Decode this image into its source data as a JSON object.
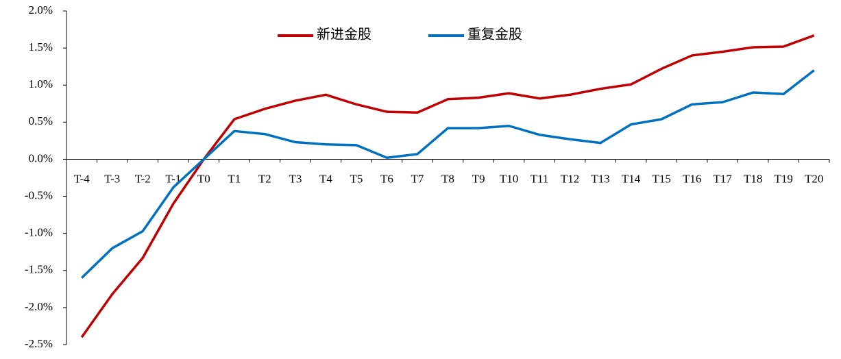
{
  "chart_data": {
    "type": "line",
    "categories": [
      "T-4",
      "T-3",
      "T-2",
      "T-1",
      "T0",
      "T1",
      "T2",
      "T3",
      "T4",
      "T5",
      "T6",
      "T7",
      "T8",
      "T9",
      "T10",
      "T11",
      "T12",
      "T13",
      "T14",
      "T15",
      "T16",
      "T17",
      "T18",
      "T19",
      "T20"
    ],
    "series": [
      {
        "name": "新进金股",
        "color": "#c00000",
        "values": [
          -2.4,
          -1.82,
          -1.33,
          -0.6,
          0.0,
          0.54,
          0.68,
          0.79,
          0.87,
          0.74,
          0.64,
          0.63,
          0.81,
          0.83,
          0.89,
          0.82,
          0.87,
          0.95,
          1.01,
          1.22,
          1.4,
          1.45,
          1.51,
          1.52,
          1.67
        ]
      },
      {
        "name": "重复金股",
        "color": "#0070c0",
        "values": [
          -1.6,
          -1.2,
          -0.97,
          -0.38,
          0.0,
          0.38,
          0.34,
          0.23,
          0.2,
          0.19,
          0.02,
          0.07,
          0.42,
          0.42,
          0.45,
          0.33,
          0.27,
          0.22,
          0.47,
          0.54,
          0.74,
          0.77,
          0.9,
          0.88,
          1.2
        ]
      }
    ],
    "ylim": [
      -2.5,
      2.0
    ],
    "yticks": [
      {
        "value": 2.0,
        "label": "2.0%"
      },
      {
        "value": 1.5,
        "label": "1.5%"
      },
      {
        "value": 1.0,
        "label": "1.0%"
      },
      {
        "value": 0.5,
        "label": "0.5%"
      },
      {
        "value": 0.0,
        "label": "0.0%"
      },
      {
        "value": -0.5,
        "label": "-0.5%"
      },
      {
        "value": -1.0,
        "label": "-1.0%"
      },
      {
        "value": -1.5,
        "label": "-1.5%"
      },
      {
        "value": -2.0,
        "label": "-2.0%"
      },
      {
        "value": -2.5,
        "label": "-2.5%"
      }
    ],
    "legend": "top"
  }
}
